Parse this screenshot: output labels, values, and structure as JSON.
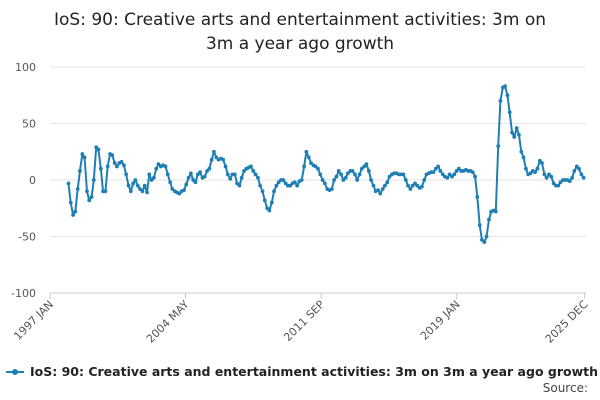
{
  "chart_data": {
    "type": "line",
    "title_line1": "IoS: 90: Creative arts and entertainment activities: 3m on",
    "title_line2": "3m a year ago growth",
    "xlabel": "",
    "ylabel": "",
    "ylim": [
      -100,
      100
    ],
    "yticks": [
      100,
      50,
      0,
      -50,
      -100
    ],
    "xlim": [
      1997.0,
      2026.0
    ],
    "xticks": [
      {
        "label": "1997 JAN",
        "x": 1997.0
      },
      {
        "label": "2004 MAY",
        "x": 2004.33
      },
      {
        "label": "2011 SEP",
        "x": 2011.67
      },
      {
        "label": "2019 JAN",
        "x": 2019.0
      },
      {
        "label": "2025 DEC",
        "x": 2025.92
      }
    ],
    "grid": true,
    "legend_position": "bottom",
    "series_color": "#1f7fb4",
    "series": [
      {
        "name": "IoS: 90: Creative arts and entertainment activities: 3m on 3m a year ago growth",
        "points": [
          [
            1998.0,
            -3
          ],
          [
            1998.12,
            -20
          ],
          [
            1998.25,
            -31
          ],
          [
            1998.37,
            -28
          ],
          [
            1998.5,
            -8
          ],
          [
            1998.62,
            8
          ],
          [
            1998.75,
            23
          ],
          [
            1998.87,
            20
          ],
          [
            1999.0,
            -10
          ],
          [
            1999.12,
            -18
          ],
          [
            1999.25,
            -15
          ],
          [
            1999.37,
            0
          ],
          [
            1999.5,
            29
          ],
          [
            1999.62,
            27
          ],
          [
            1999.75,
            10
          ],
          [
            1999.87,
            -10
          ],
          [
            2000.0,
            -10
          ],
          [
            2000.12,
            12
          ],
          [
            2000.25,
            23
          ],
          [
            2000.37,
            22
          ],
          [
            2000.5,
            15
          ],
          [
            2000.62,
            12
          ],
          [
            2000.75,
            15
          ],
          [
            2000.87,
            16
          ],
          [
            2001.0,
            13
          ],
          [
            2001.12,
            5
          ],
          [
            2001.25,
            -5
          ],
          [
            2001.37,
            -10
          ],
          [
            2001.5,
            -3
          ],
          [
            2001.62,
            0
          ],
          [
            2001.75,
            -5
          ],
          [
            2001.87,
            -8
          ],
          [
            2002.0,
            -10
          ],
          [
            2002.12,
            -5
          ],
          [
            2002.25,
            -11
          ],
          [
            2002.37,
            5
          ],
          [
            2002.5,
            0
          ],
          [
            2002.62,
            2
          ],
          [
            2002.75,
            10
          ],
          [
            2002.87,
            14
          ],
          [
            2003.0,
            12
          ],
          [
            2003.12,
            13
          ],
          [
            2003.25,
            12
          ],
          [
            2003.37,
            5
          ],
          [
            2003.5,
            -2
          ],
          [
            2003.62,
            -8
          ],
          [
            2003.75,
            -10
          ],
          [
            2003.87,
            -11
          ],
          [
            2004.0,
            -12
          ],
          [
            2004.12,
            -10
          ],
          [
            2004.25,
            -9
          ],
          [
            2004.37,
            -4
          ],
          [
            2004.5,
            2
          ],
          [
            2004.62,
            6
          ],
          [
            2004.75,
            0
          ],
          [
            2004.87,
            -2
          ],
          [
            2005.0,
            5
          ],
          [
            2005.12,
            7
          ],
          [
            2005.25,
            2
          ],
          [
            2005.37,
            3
          ],
          [
            2005.5,
            8
          ],
          [
            2005.62,
            10
          ],
          [
            2005.75,
            18
          ],
          [
            2005.87,
            25
          ],
          [
            2006.0,
            20
          ],
          [
            2006.12,
            18
          ],
          [
            2006.25,
            19
          ],
          [
            2006.37,
            18
          ],
          [
            2006.5,
            12
          ],
          [
            2006.62,
            5
          ],
          [
            2006.75,
            1
          ],
          [
            2006.87,
            5
          ],
          [
            2007.0,
            5
          ],
          [
            2007.12,
            -3
          ],
          [
            2007.25,
            -5
          ],
          [
            2007.37,
            2
          ],
          [
            2007.5,
            8
          ],
          [
            2007.62,
            10
          ],
          [
            2007.75,
            11
          ],
          [
            2007.87,
            12
          ],
          [
            2008.0,
            8
          ],
          [
            2008.12,
            5
          ],
          [
            2008.25,
            2
          ],
          [
            2008.37,
            -5
          ],
          [
            2008.5,
            -10
          ],
          [
            2008.62,
            -18
          ],
          [
            2008.75,
            -25
          ],
          [
            2008.87,
            -27
          ],
          [
            2009.0,
            -20
          ],
          [
            2009.12,
            -10
          ],
          [
            2009.25,
            -5
          ],
          [
            2009.37,
            -2
          ],
          [
            2009.5,
            0
          ],
          [
            2009.62,
            0
          ],
          [
            2009.75,
            -3
          ],
          [
            2009.87,
            -5
          ],
          [
            2010.0,
            -5
          ],
          [
            2010.12,
            -3
          ],
          [
            2010.25,
            -2
          ],
          [
            2010.37,
            -5
          ],
          [
            2010.5,
            -1
          ],
          [
            2010.62,
            0
          ],
          [
            2010.75,
            12
          ],
          [
            2010.87,
            25
          ],
          [
            2011.0,
            20
          ],
          [
            2011.12,
            15
          ],
          [
            2011.25,
            13
          ],
          [
            2011.37,
            12
          ],
          [
            2011.5,
            10
          ],
          [
            2011.62,
            5
          ],
          [
            2011.75,
            0
          ],
          [
            2011.87,
            -3
          ],
          [
            2012.0,
            -8
          ],
          [
            2012.12,
            -9
          ],
          [
            2012.25,
            -8
          ],
          [
            2012.37,
            0
          ],
          [
            2012.5,
            3
          ],
          [
            2012.62,
            8
          ],
          [
            2012.75,
            5
          ],
          [
            2012.87,
            0
          ],
          [
            2013.0,
            2
          ],
          [
            2013.12,
            6
          ],
          [
            2013.25,
            8
          ],
          [
            2013.37,
            8
          ],
          [
            2013.5,
            5
          ],
          [
            2013.62,
            0
          ],
          [
            2013.75,
            5
          ],
          [
            2013.87,
            10
          ],
          [
            2014.0,
            12
          ],
          [
            2014.12,
            14
          ],
          [
            2014.25,
            8
          ],
          [
            2014.37,
            0
          ],
          [
            2014.5,
            -5
          ],
          [
            2014.62,
            -10
          ],
          [
            2014.75,
            -9
          ],
          [
            2014.87,
            -12
          ],
          [
            2015.0,
            -8
          ],
          [
            2015.12,
            -5
          ],
          [
            2015.25,
            -2
          ],
          [
            2015.37,
            3
          ],
          [
            2015.5,
            5
          ],
          [
            2015.62,
            6
          ],
          [
            2015.75,
            6
          ],
          [
            2015.87,
            5
          ],
          [
            2016.0,
            5
          ],
          [
            2016.12,
            5
          ],
          [
            2016.25,
            0
          ],
          [
            2016.37,
            -5
          ],
          [
            2016.5,
            -8
          ],
          [
            2016.62,
            -5
          ],
          [
            2016.75,
            -3
          ],
          [
            2016.87,
            -5
          ],
          [
            2017.0,
            -7
          ],
          [
            2017.12,
            -6
          ],
          [
            2017.25,
            0
          ],
          [
            2017.37,
            5
          ],
          [
            2017.5,
            6
          ],
          [
            2017.62,
            7
          ],
          [
            2017.75,
            7
          ],
          [
            2017.87,
            10
          ],
          [
            2018.0,
            12
          ],
          [
            2018.12,
            8
          ],
          [
            2018.25,
            5
          ],
          [
            2018.37,
            3
          ],
          [
            2018.5,
            2
          ],
          [
            2018.62,
            5
          ],
          [
            2018.75,
            3
          ],
          [
            2018.87,
            5
          ],
          [
            2019.0,
            8
          ],
          [
            2019.12,
            10
          ],
          [
            2019.25,
            8
          ],
          [
            2019.37,
            8
          ],
          [
            2019.5,
            9
          ],
          [
            2019.62,
            8
          ],
          [
            2019.75,
            8
          ],
          [
            2019.87,
            7
          ],
          [
            2020.0,
            3
          ],
          [
            2020.12,
            -15
          ],
          [
            2020.25,
            -40
          ],
          [
            2020.37,
            -53
          ],
          [
            2020.5,
            -55
          ],
          [
            2020.62,
            -50
          ],
          [
            2020.75,
            -35
          ],
          [
            2020.87,
            -28
          ],
          [
            2021.0,
            -27
          ],
          [
            2021.12,
            -28
          ],
          [
            2021.25,
            30
          ],
          [
            2021.37,
            70
          ],
          [
            2021.5,
            82
          ],
          [
            2021.62,
            83
          ],
          [
            2021.75,
            75
          ],
          [
            2021.87,
            60
          ],
          [
            2022.0,
            42
          ],
          [
            2022.12,
            38
          ],
          [
            2022.25,
            46
          ],
          [
            2022.37,
            40
          ],
          [
            2022.5,
            25
          ],
          [
            2022.62,
            20
          ],
          [
            2022.75,
            10
          ],
          [
            2022.87,
            5
          ],
          [
            2023.0,
            6
          ],
          [
            2023.12,
            8
          ],
          [
            2023.25,
            7
          ],
          [
            2023.37,
            10
          ],
          [
            2023.5,
            17
          ],
          [
            2023.62,
            15
          ],
          [
            2023.75,
            5
          ],
          [
            2023.87,
            2
          ],
          [
            2024.0,
            5
          ],
          [
            2024.12,
            3
          ],
          [
            2024.25,
            -3
          ],
          [
            2024.37,
            -5
          ],
          [
            2024.5,
            -5
          ],
          [
            2024.62,
            -2
          ],
          [
            2024.75,
            0
          ],
          [
            2024.87,
            0
          ],
          [
            2025.0,
            0
          ],
          [
            2025.12,
            -1
          ],
          [
            2025.25,
            2
          ],
          [
            2025.37,
            8
          ],
          [
            2025.5,
            12
          ],
          [
            2025.62,
            10
          ],
          [
            2025.75,
            5
          ],
          [
            2025.87,
            2
          ]
        ]
      }
    ]
  },
  "source_label": "Source:"
}
